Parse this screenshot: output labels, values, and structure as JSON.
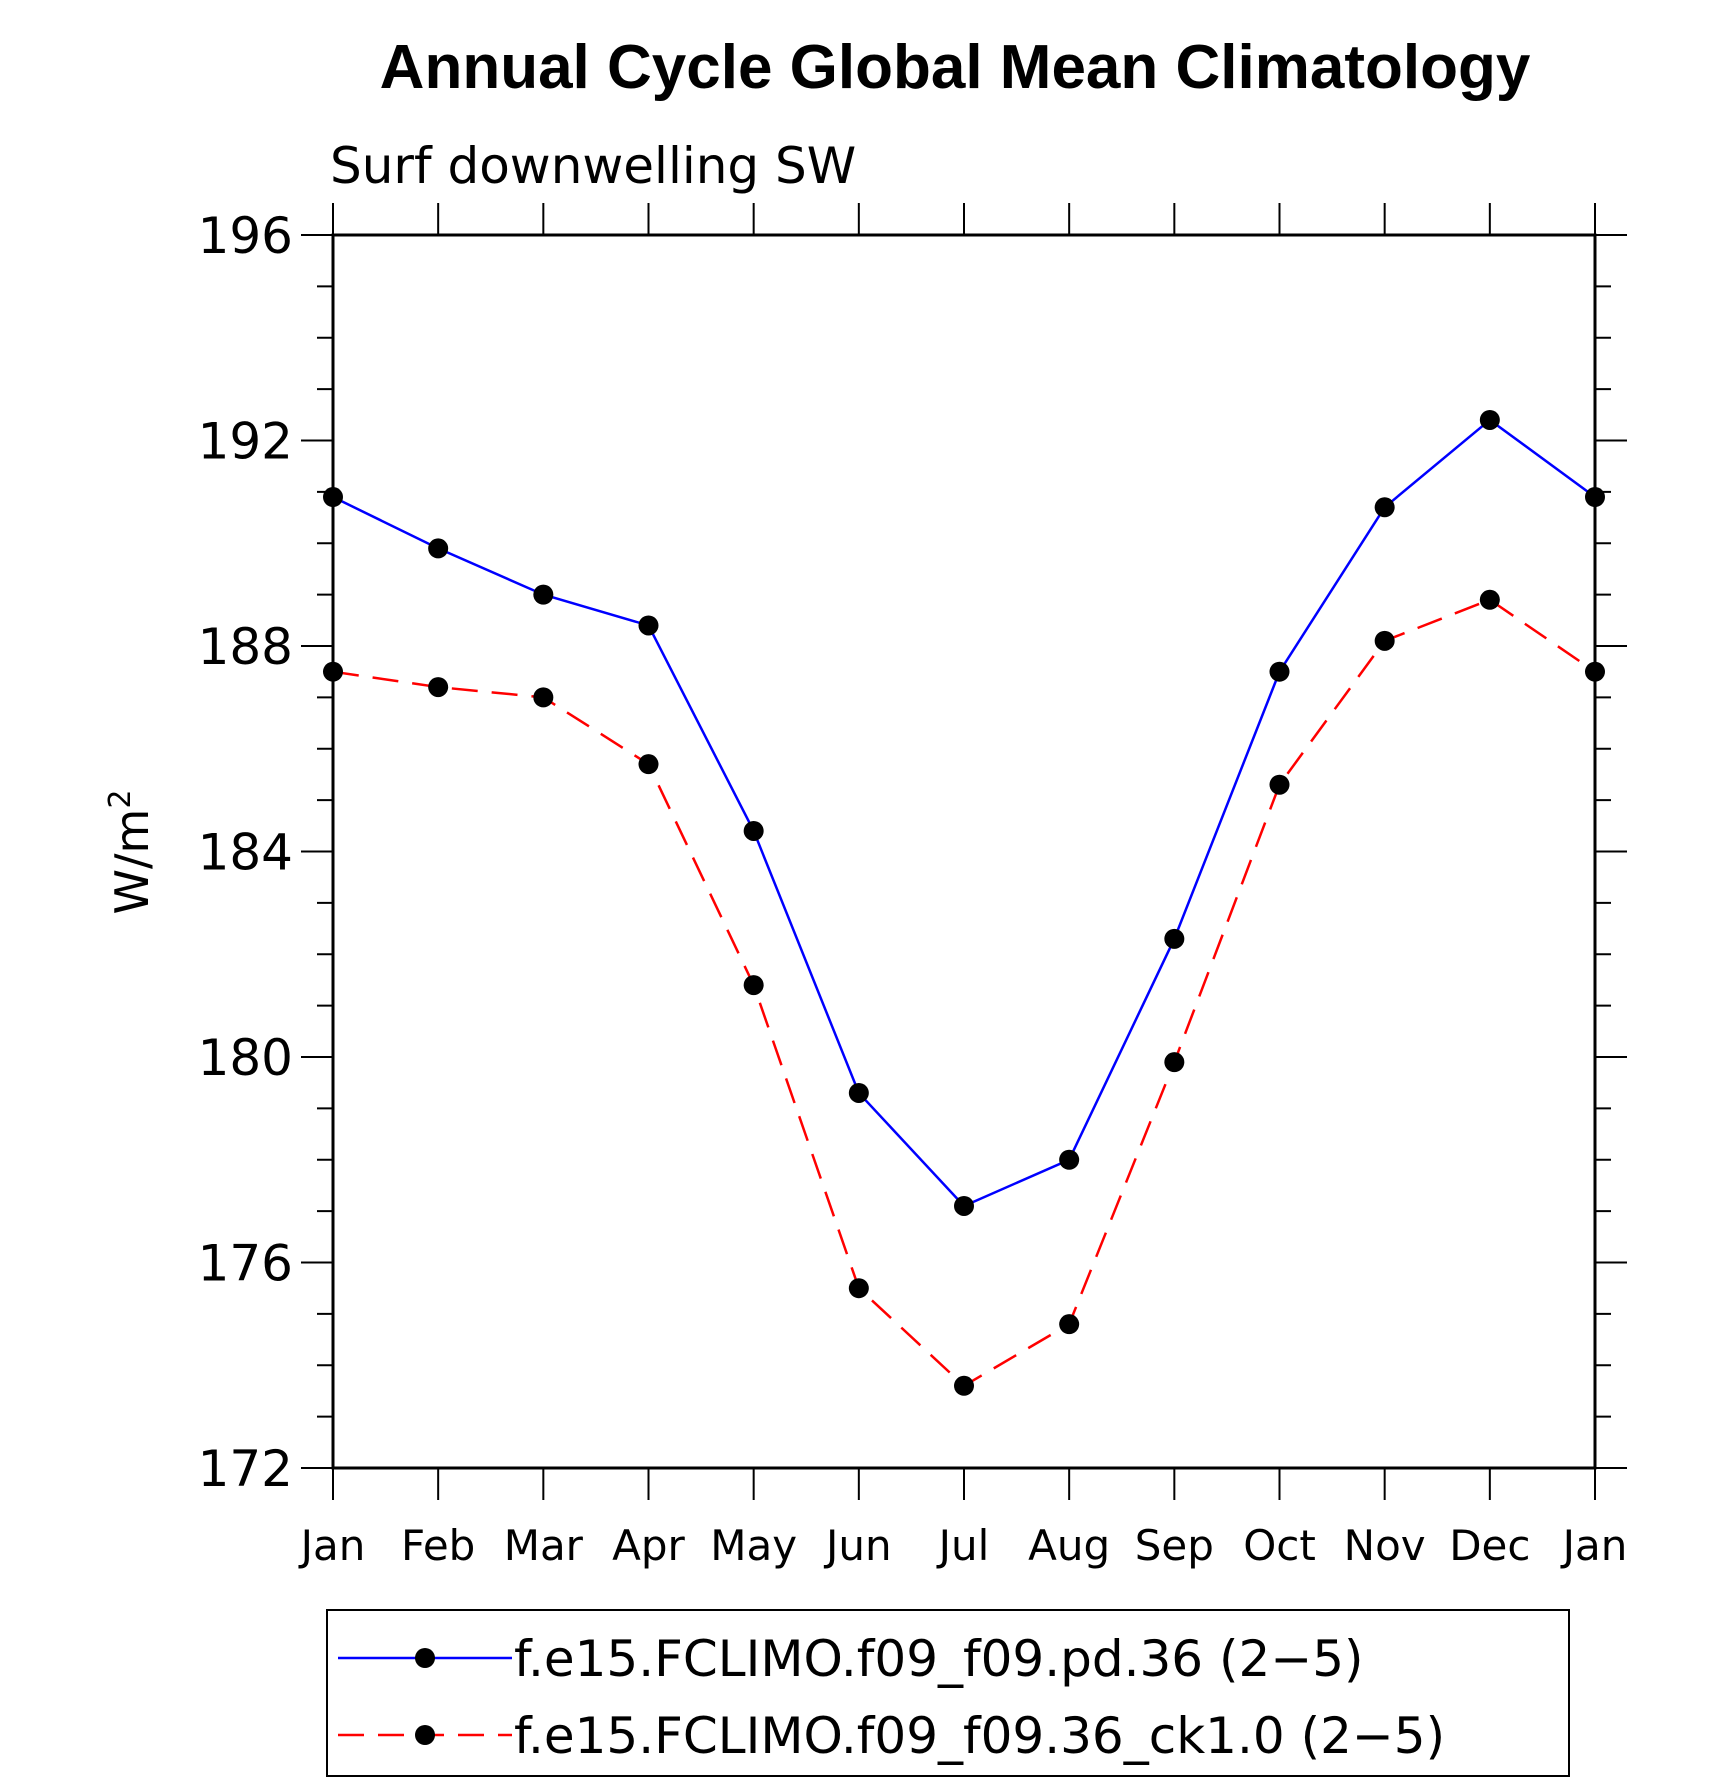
{
  "chart_data": {
    "type": "line",
    "title": "Annual Cycle Global Mean Climatology",
    "subtitle": "Surf downwelling SW",
    "ylabel_base": "W/m",
    "ylabel_sup": "2",
    "xlabel": "",
    "categories": [
      "Jan",
      "Feb",
      "Mar",
      "Apr",
      "May",
      "Jun",
      "Jul",
      "Aug",
      "Sep",
      "Oct",
      "Nov",
      "Dec",
      "Jan"
    ],
    "ylim": [
      172,
      196
    ],
    "yticks": [
      172,
      176,
      180,
      184,
      188,
      192,
      196
    ],
    "y_minor_step": 1,
    "grid": false,
    "legend_position": "bottom",
    "series": [
      {
        "name": "f.e15.FCLIMO.f09_f09.pd.36 (2−5)",
        "color": "#0000ff",
        "dashed": false,
        "marker": "filled-circle",
        "values": [
          190.9,
          189.9,
          189.0,
          188.4,
          184.4,
          179.3,
          177.1,
          178.0,
          182.3,
          187.5,
          190.7,
          192.4,
          190.9
        ]
      },
      {
        "name": "f.e15.FCLIMO.f09_f09.36_ck1.0 (2−5)",
        "color": "#ff0000",
        "dashed": true,
        "marker": "filled-circle",
        "values": [
          187.5,
          187.2,
          187.0,
          185.7,
          181.4,
          175.5,
          173.6,
          174.8,
          179.9,
          185.3,
          188.1,
          188.9,
          187.5
        ]
      }
    ]
  }
}
